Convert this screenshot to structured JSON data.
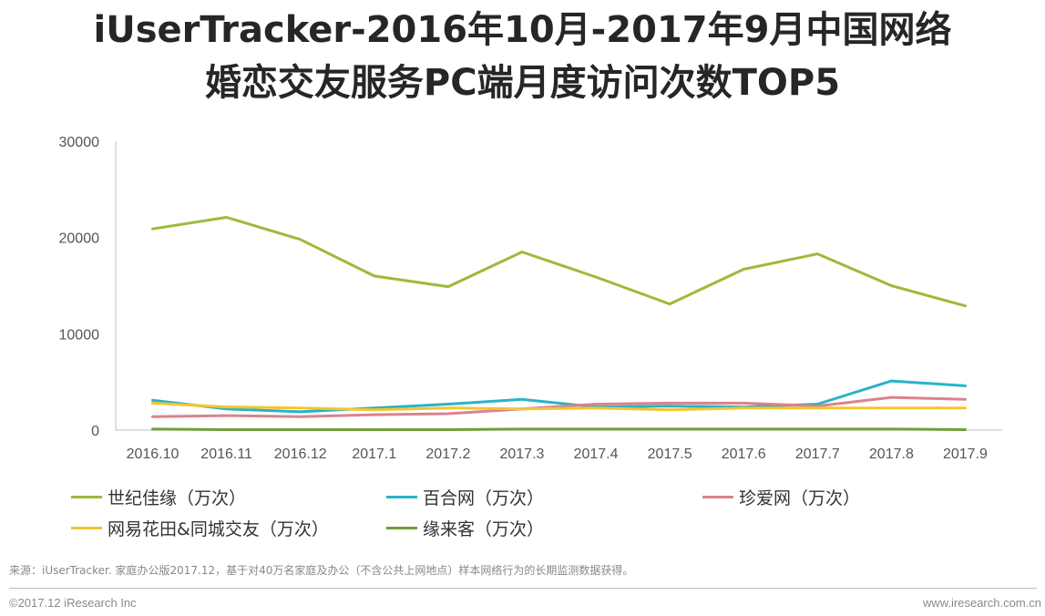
{
  "title_line1": "iUserTracker-2016年10月-2017年9月中国网络",
  "title_line2": "婚恋交友服务PC端月度访问次数TOP5",
  "source_note": "来源：iUserTracker. 家庭办公版2017.12，基于对40万名家庭及办公（不含公共上网地点）样本网络行为的长期监测数据获得。",
  "footer_left": "©2017.12 iResearch Inc",
  "footer_right": "www.iresearch.com.cn",
  "chart_data": {
    "type": "line",
    "title": "",
    "xlabel": "",
    "ylabel": "",
    "ylim": [
      0,
      30000
    ],
    "yticks": [
      "30000",
      "20000",
      "10000",
      "0"
    ],
    "grid": false,
    "legend_position": "bottom",
    "categories": [
      "2016.10",
      "2016.11",
      "2016.12",
      "2017.1",
      "2017.2",
      "2017.3",
      "2017.4",
      "2017.5",
      "2017.6",
      "2017.7",
      "2017.8",
      "2017.9"
    ],
    "series": [
      {
        "name": "世纪佳缘（万次）",
        "color": "#9bbb3b",
        "values": [
          20900,
          22100,
          19800,
          16000,
          14900,
          18500,
          15900,
          13100,
          16700,
          18300,
          15000,
          12900
        ]
      },
      {
        "name": "百合网（万次）",
        "color": "#2ab3c6",
        "values": [
          3100,
          2200,
          1900,
          2300,
          2700,
          3200,
          2400,
          2500,
          2400,
          2700,
          5100,
          4600
        ]
      },
      {
        "name": "珍爱网（万次）",
        "color": "#d9838e",
        "values": [
          1400,
          1500,
          1400,
          1600,
          1700,
          2200,
          2700,
          2800,
          2800,
          2500,
          3400,
          3200
        ]
      },
      {
        "name": "网易花田&同城交友（万次）",
        "color": "#f2c531",
        "values": [
          2800,
          2400,
          2300,
          2100,
          2300,
          2200,
          2300,
          2100,
          2300,
          2300,
          2300,
          2300
        ]
      },
      {
        "name": "缘来客（万次）",
        "color": "#6f9e3a",
        "values": [
          100,
          50,
          50,
          50,
          50,
          100,
          100,
          100,
          100,
          100,
          100,
          50
        ]
      }
    ]
  }
}
